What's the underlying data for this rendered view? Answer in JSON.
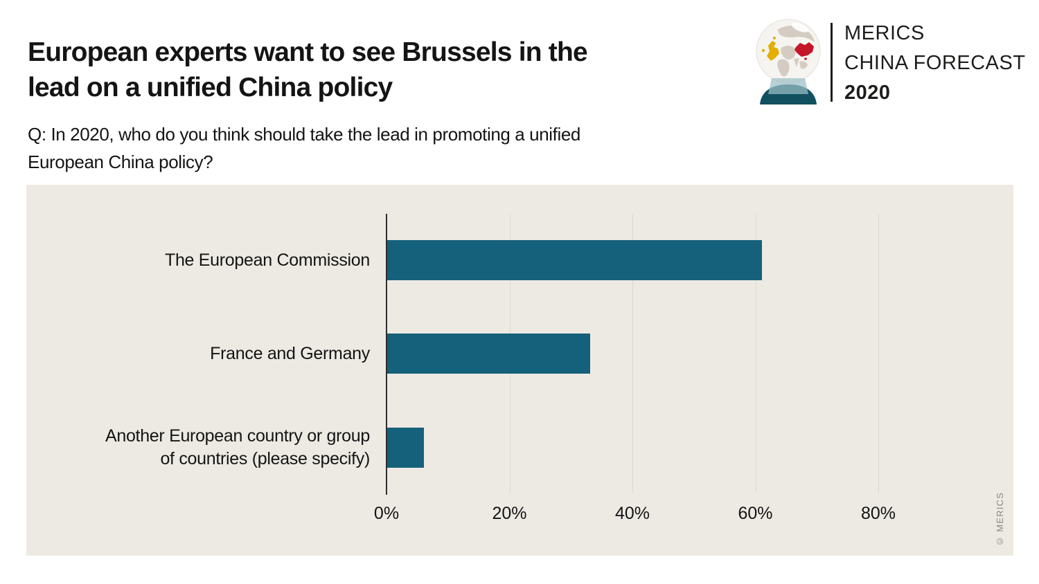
{
  "header": {
    "title_line1": "European experts want to see Brussels in the",
    "title_line2": "lead on a unified China policy",
    "subtitle_line1": "Q: In 2020, who do you think should take the lead in promoting a unified",
    "subtitle_line2": "European China policy?"
  },
  "logo": {
    "brand_line1": "MERICS",
    "brand_line2": "CHINA FORECAST",
    "brand_line3": "2020",
    "globe_land_color": "#d4ccc2",
    "globe_europe_color": "#e3ae05",
    "globe_china_color": "#c31628",
    "globe_base_color": "#11505f",
    "globe_band_color": "#9dbfc6"
  },
  "chart_data": {
    "type": "bar",
    "orientation": "horizontal",
    "title": "European experts want to see Brussels in the lead on a unified China policy",
    "categories": [
      "The European Commission",
      "France and Germany",
      "Another European country or group of countries (please specify)"
    ],
    "label_lines": [
      [
        "The European Commission"
      ],
      [
        "France and Germany"
      ],
      [
        "Another European country or group",
        "of countries (please specify)"
      ]
    ],
    "values": [
      61,
      33,
      6
    ],
    "unit": "%",
    "xlabel": "",
    "ylabel": "",
    "xlim": [
      0,
      100
    ],
    "x_ticks": [
      "0%",
      "20%",
      "40%",
      "60%",
      "80%"
    ],
    "x_tick_values": [
      0,
      20,
      40,
      60,
      80
    ],
    "grid": true,
    "legend": false,
    "bar_color": "#15607a",
    "panel_background": "#edeae3",
    "axis_color": "#2e2e2e",
    "gridline_color": "#dcd8d1"
  },
  "footer": {
    "credit": "© MERICS"
  }
}
